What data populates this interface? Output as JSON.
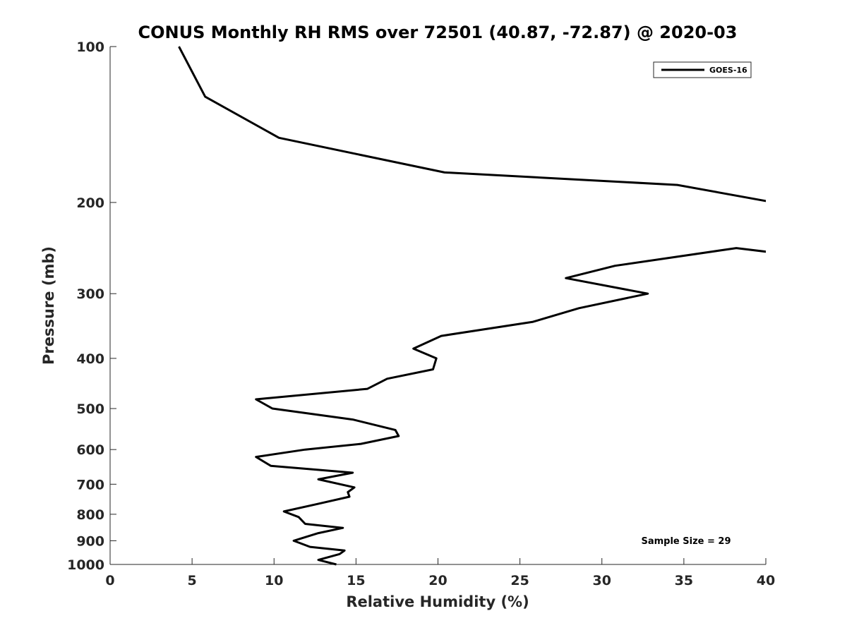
{
  "chart_data": {
    "type": "line",
    "title": "CONUS Monthly RH RMS over 72501 (40.87, -72.87) @ 2020-03",
    "xlabel": "Relative Humidity (%)",
    "ylabel": "Pressure (mb)",
    "xlim": [
      0,
      40
    ],
    "ylim": [
      100,
      1000
    ],
    "yscale": "log",
    "y_reversed": true,
    "grid": false,
    "legend_position": "top-right",
    "x_ticks": [
      "0",
      "5",
      "10",
      "15",
      "20",
      "25",
      "30",
      "35",
      "40"
    ],
    "x_tick_values": [
      0,
      5,
      10,
      15,
      20,
      25,
      30,
      35,
      40
    ],
    "y_ticks": [
      "100",
      "200",
      "300",
      "400",
      "500",
      "600",
      "700",
      "800",
      "900",
      "1000"
    ],
    "y_tick_values": [
      100,
      200,
      300,
      400,
      500,
      600,
      700,
      800,
      900,
      1000
    ],
    "series": [
      {
        "name": "GOES-16",
        "color": "#000000",
        "points": [
          [
            4.2,
            100
          ],
          [
            5.8,
            125
          ],
          [
            10.3,
            150
          ],
          [
            20.4,
            175
          ],
          [
            34.6,
            185
          ],
          [
            40.5,
            200
          ],
          [
            40.5,
            250
          ],
          [
            38.2,
            245
          ],
          [
            30.8,
            265
          ],
          [
            27.8,
            280
          ],
          [
            32.8,
            300
          ],
          [
            28.6,
            320
          ],
          [
            25.8,
            340
          ],
          [
            20.2,
            362
          ],
          [
            18.5,
            383
          ],
          [
            19.9,
            400
          ],
          [
            19.7,
            420
          ],
          [
            16.9,
            438
          ],
          [
            15.7,
            458
          ],
          [
            8.9,
            480
          ],
          [
            9.9,
            500
          ],
          [
            14.8,
            525
          ],
          [
            17.4,
            550
          ],
          [
            17.6,
            565
          ],
          [
            15.3,
            585
          ],
          [
            11.9,
            600
          ],
          [
            8.9,
            620
          ],
          [
            9.8,
            645
          ],
          [
            14.8,
            665
          ],
          [
            12.7,
            685
          ],
          [
            14.9,
            710
          ],
          [
            14.5,
            725
          ],
          [
            14.6,
            740
          ],
          [
            12.6,
            765
          ],
          [
            10.6,
            790
          ],
          [
            11.5,
            810
          ],
          [
            11.9,
            835
          ],
          [
            14.2,
            850
          ],
          [
            12.7,
            870
          ],
          [
            11.2,
            900
          ],
          [
            12.2,
            925
          ],
          [
            14.3,
            940
          ],
          [
            14.0,
            955
          ],
          [
            12.7,
            980
          ],
          [
            13.8,
            1000
          ]
        ]
      }
    ],
    "annotation": "Sample Size = 29"
  }
}
